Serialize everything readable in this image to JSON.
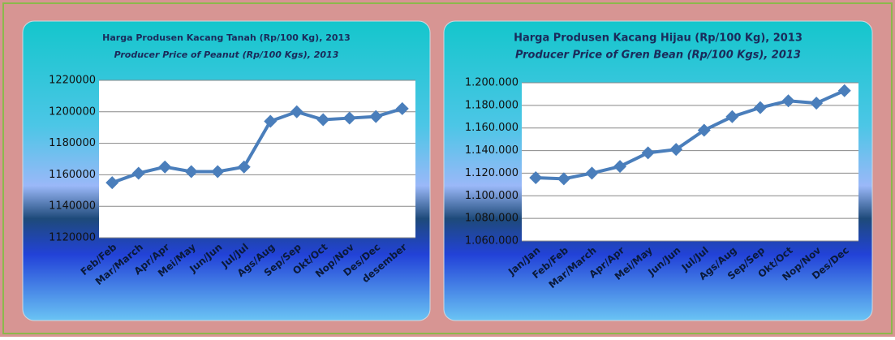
{
  "chart_data": [
    {
      "type": "line",
      "title": "Harga Produsen Kacang Tanah (Rp/100 Kg), 2013",
      "subtitle": "Producer Price of Peanut (Rp/100 Kgs), 2013",
      "categories": [
        "Feb/Feb",
        "Mar/March",
        "Apr/Apr",
        "Mei/May",
        "Jun/Jun",
        "Jul/Jul",
        "Ags/Aug",
        "Sep/Sep",
        "Okt/Oct",
        "Nop/Nov",
        "Des/Dec",
        "desember"
      ],
      "values": [
        1155000,
        1161000,
        1165000,
        1162000,
        1162000,
        1165000,
        1194000,
        1200000,
        1195000,
        1196000,
        1197000,
        1202000
      ],
      "color": "#4a7ebb",
      "ylim": [
        1120000,
        1220000
      ],
      "yticks": [
        1120000,
        1140000,
        1160000,
        1180000,
        1200000,
        1220000
      ],
      "grid": true
    },
    {
      "type": "line",
      "title": "Harga Produsen Kacang Hijau (Rp/100 Kg), 2013",
      "subtitle": "Producer Price of Gren Bean (Rp/100 Kgs), 2013",
      "categories": [
        "Jan/Jan",
        "Feb/Feb",
        "Mar/March",
        "Apr/Apr",
        "Mei/May",
        "Jun/Jun",
        "Jul/Jul",
        "Ags/Aug",
        "Sep/Sep",
        "Okt/Oct",
        "Nop/Nov",
        "Des/Dec"
      ],
      "values": [
        1116000,
        1115000,
        1120000,
        1126000,
        1138000,
        1141000,
        1158000,
        1170000,
        1178000,
        1184000,
        1182000,
        1193000
      ],
      "color": "#4a7ebb",
      "ylim": [
        1060000,
        1200000
      ],
      "yticks": [
        {
          "value": 1060000,
          "label": "1.060.000"
        },
        {
          "value": 1080000,
          "label": "1.080.000"
        },
        {
          "value": 1100000,
          "label": "1.100.000"
        },
        {
          "value": 1120000,
          "label": "1.120.000"
        },
        {
          "value": 1140000,
          "label": "1.140.000"
        },
        {
          "value": 1160000,
          "label": "1.160.000"
        },
        {
          "value": 1180000,
          "label": "1.180.000"
        },
        {
          "value": 1200000,
          "label": "1.200.000"
        }
      ],
      "grid": true
    }
  ]
}
